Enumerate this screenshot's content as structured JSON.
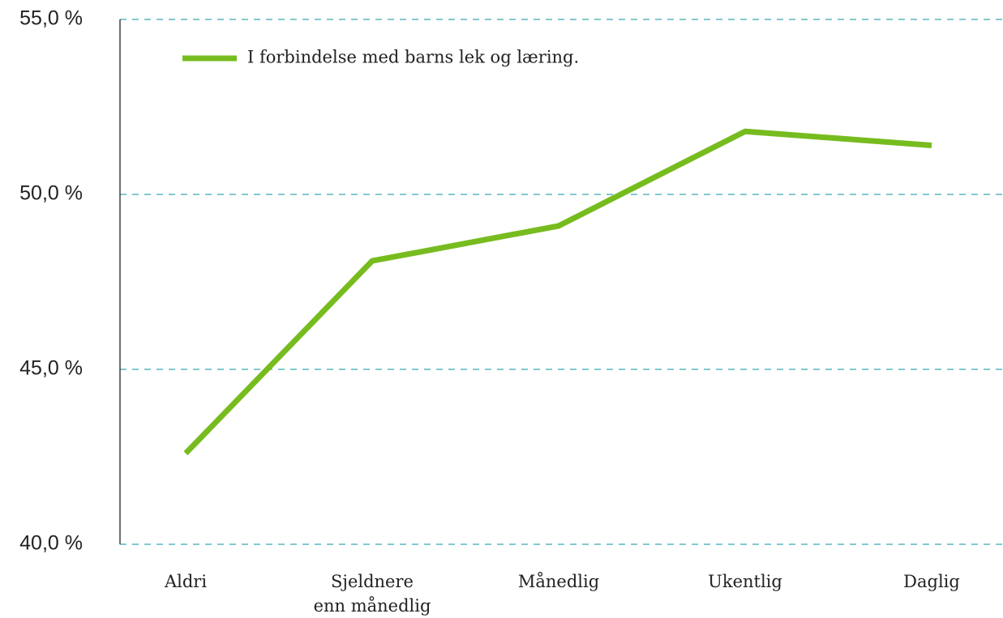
{
  "chart_data": {
    "type": "line",
    "categories": [
      "Aldri",
      "Sjeldnere\nenn månedlig",
      "Månedlig",
      "Ukentlig",
      "Daglig"
    ],
    "series": [
      {
        "name": "I forbindelse med barns lek og læring.",
        "color": "#77bc1f",
        "values": [
          42.6,
          48.1,
          49.1,
          51.8,
          51.4
        ]
      }
    ],
    "ylim": [
      40,
      55
    ],
    "yticks": [
      {
        "value": 40,
        "label": "40,0 %"
      },
      {
        "value": 45,
        "label": "45,0 %"
      },
      {
        "value": 50,
        "label": "50,0 %"
      },
      {
        "value": 55,
        "label": "55,0 %"
      }
    ],
    "grid": true,
    "legend": "top-left"
  }
}
